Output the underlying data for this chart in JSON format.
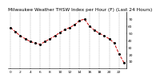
{
  "title": "Milwaukee Weather THSW Index per Hour (F) (Last 24 Hours)",
  "x_values": [
    0,
    1,
    2,
    3,
    4,
    5,
    6,
    7,
    8,
    9,
    10,
    11,
    12,
    13,
    14,
    15,
    16,
    17,
    18,
    19,
    20,
    21,
    22,
    23
  ],
  "y_values": [
    58,
    52,
    46,
    42,
    38,
    36,
    34,
    38,
    42,
    46,
    51,
    55,
    58,
    62,
    68,
    70,
    60,
    54,
    50,
    46,
    42,
    36,
    20,
    8
  ],
  "y_min": 0,
  "y_max": 80,
  "ytick_values": [
    10,
    20,
    30,
    40,
    50,
    60,
    70
  ],
  "ytick_labels": [
    "10",
    "20",
    "30",
    "40",
    "50",
    "60",
    "70"
  ],
  "xtick_positions": [
    0,
    2,
    4,
    6,
    8,
    10,
    12,
    14,
    16,
    18,
    20,
    22
  ],
  "xtick_labels": [
    "0",
    "2",
    "4",
    "6",
    "8",
    "10",
    "12",
    "14",
    "16",
    "18",
    "20",
    "22"
  ],
  "line_color": "#cc0000",
  "marker_color": "#000000",
  "bg_color": "#ffffff",
  "plot_bg_color": "#ffffff",
  "grid_color": "#999999",
  "title_fontsize": 4.2,
  "tick_fontsize": 3.2,
  "line_width": 0.7,
  "marker_size": 1.2,
  "grid_linewidth": 0.3
}
